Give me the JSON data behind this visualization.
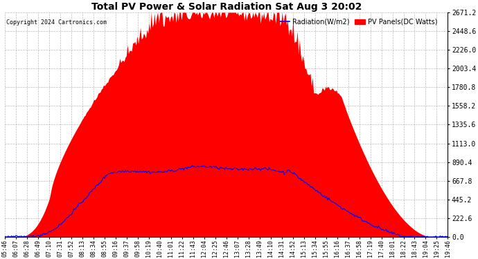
{
  "title": "Total PV Power & Solar Radiation Sat Aug 3 20:02",
  "copyright": "Copyright 2024 Cartronics.com",
  "legend_radiation": "Radiation(W/m2)",
  "legend_pv": "PV Panels(DC Watts)",
  "yticks": [
    0.0,
    222.6,
    445.2,
    667.8,
    890.4,
    1113.0,
    1335.6,
    1558.2,
    1780.8,
    2003.4,
    2226.0,
    2448.6,
    2671.2
  ],
  "ymax": 2671.2,
  "bg_color": "#ffffff",
  "grid_color": "#aaaaaa",
  "radiation_line_color": "#0000ff",
  "pv_fill_color": "#ff0000",
  "x_labels": [
    "05:46",
    "06:07",
    "06:28",
    "06:49",
    "07:10",
    "07:31",
    "07:52",
    "08:13",
    "08:34",
    "08:55",
    "09:16",
    "09:37",
    "09:58",
    "10:19",
    "10:40",
    "11:01",
    "11:22",
    "11:43",
    "12:04",
    "12:25",
    "12:46",
    "13:07",
    "13:28",
    "13:49",
    "14:10",
    "14:31",
    "14:52",
    "15:13",
    "15:34",
    "15:55",
    "16:16",
    "16:37",
    "16:58",
    "17:19",
    "17:40",
    "18:01",
    "18:22",
    "18:43",
    "19:04",
    "19:25",
    "19:46"
  ],
  "n_points": 410,
  "pv_peak": 2671.2,
  "rad_peak": 890.4,
  "rad_plateau": 780.0
}
